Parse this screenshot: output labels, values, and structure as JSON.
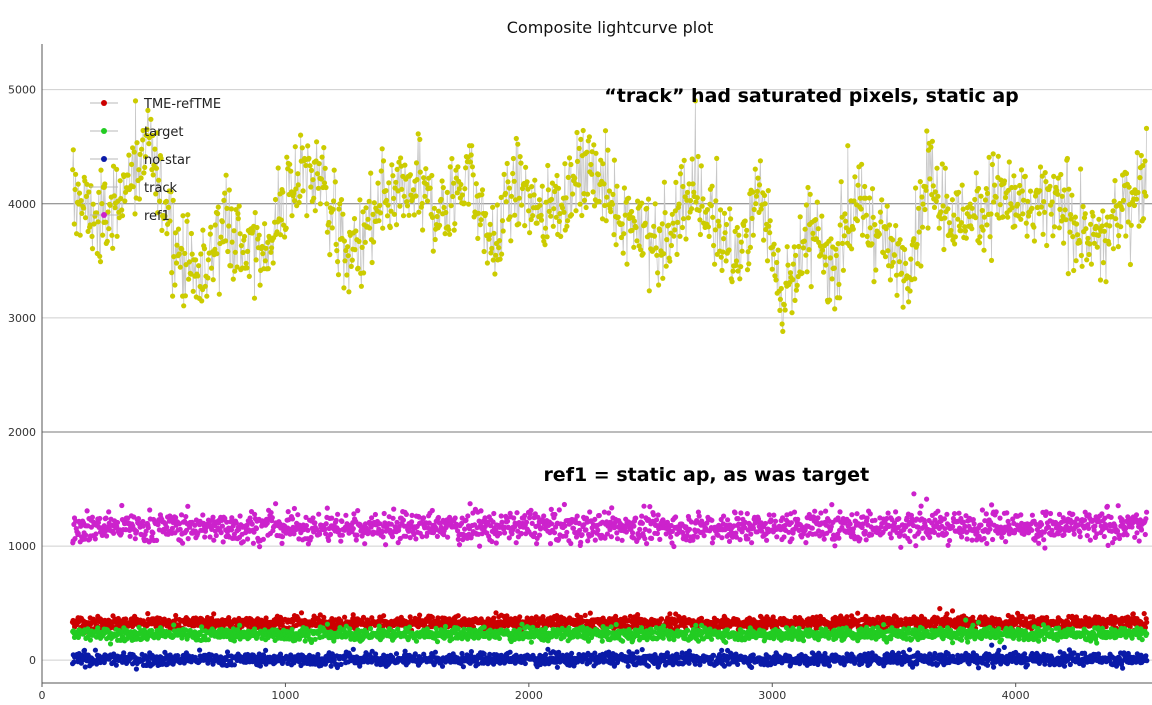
{
  "chart_data": {
    "type": "scatter",
    "title": "Composite lightcurve plot",
    "xlabel": "",
    "ylabel": "",
    "xlim": [
      0,
      4560
    ],
    "ylim": [
      -200,
      5400
    ],
    "x_ticks": [
      0,
      1000,
      2000,
      3000,
      4000
    ],
    "y_ticks": [
      0,
      1000,
      2000,
      3000,
      4000,
      5000
    ],
    "x_range_data": [
      125,
      4540
    ],
    "grid": "horizontal",
    "legend_position": "top-left",
    "legend": [
      {
        "label": "TME-refTME",
        "color": "#cc0000"
      },
      {
        "label": "target",
        "color": "#22cc22"
      },
      {
        "label": "no-star",
        "color": "#0a1aa8"
      },
      {
        "label": "track",
        "color": "#cccc00"
      },
      {
        "label": "ref1",
        "color": "#cc22cc"
      }
    ],
    "series": [
      {
        "key": "track",
        "color": "#cccc00",
        "line_color": "#c8c8c8",
        "connected": true,
        "profile_x": [
          125,
          250,
          350,
          450,
          550,
          650,
          750,
          850,
          950,
          1050,
          1150,
          1250,
          1350,
          1450,
          1550,
          1650,
          1750,
          1850,
          1950,
          2050,
          2150,
          2250,
          2350,
          2450,
          2550,
          2650,
          2750,
          2850,
          2950,
          3050,
          3150,
          3250,
          3350,
          3450,
          3550,
          3650,
          3750,
          3850,
          3950,
          4050,
          4150,
          4250,
          4350,
          4450,
          4540
        ],
        "profile_y": [
          4100,
          3800,
          4200,
          4400,
          3700,
          3300,
          3900,
          3500,
          3700,
          4300,
          4200,
          3500,
          3800,
          4000,
          4100,
          3900,
          4300,
          3600,
          4200,
          3900,
          4100,
          4300,
          4000,
          3800,
          3600,
          4100,
          3900,
          3500,
          4100,
          3200,
          3700,
          3500,
          4000,
          3700,
          3400,
          4200,
          3800,
          4000,
          4100,
          3900,
          4000,
          3800,
          3600,
          4000,
          4300
        ],
        "noise": 380
      },
      {
        "key": "ref1",
        "color": "#cc22cc",
        "mean": 1170,
        "noise": 130
      },
      {
        "key": "TME-refTME",
        "color": "#cc0000",
        "mean": 330,
        "noise": 55
      },
      {
        "key": "target",
        "color": "#22cc22",
        "mean": 230,
        "noise": 55
      },
      {
        "key": "no-star",
        "color": "#0a1aa8",
        "mean": 10,
        "noise": 55
      }
    ],
    "annotations": [
      {
        "text": "“track” had saturated pixels, static ap",
        "x": 2310,
        "y": 4890
      },
      {
        "text": "ref1 = static ap, as was target",
        "x": 2060,
        "y": 1570
      }
    ]
  }
}
